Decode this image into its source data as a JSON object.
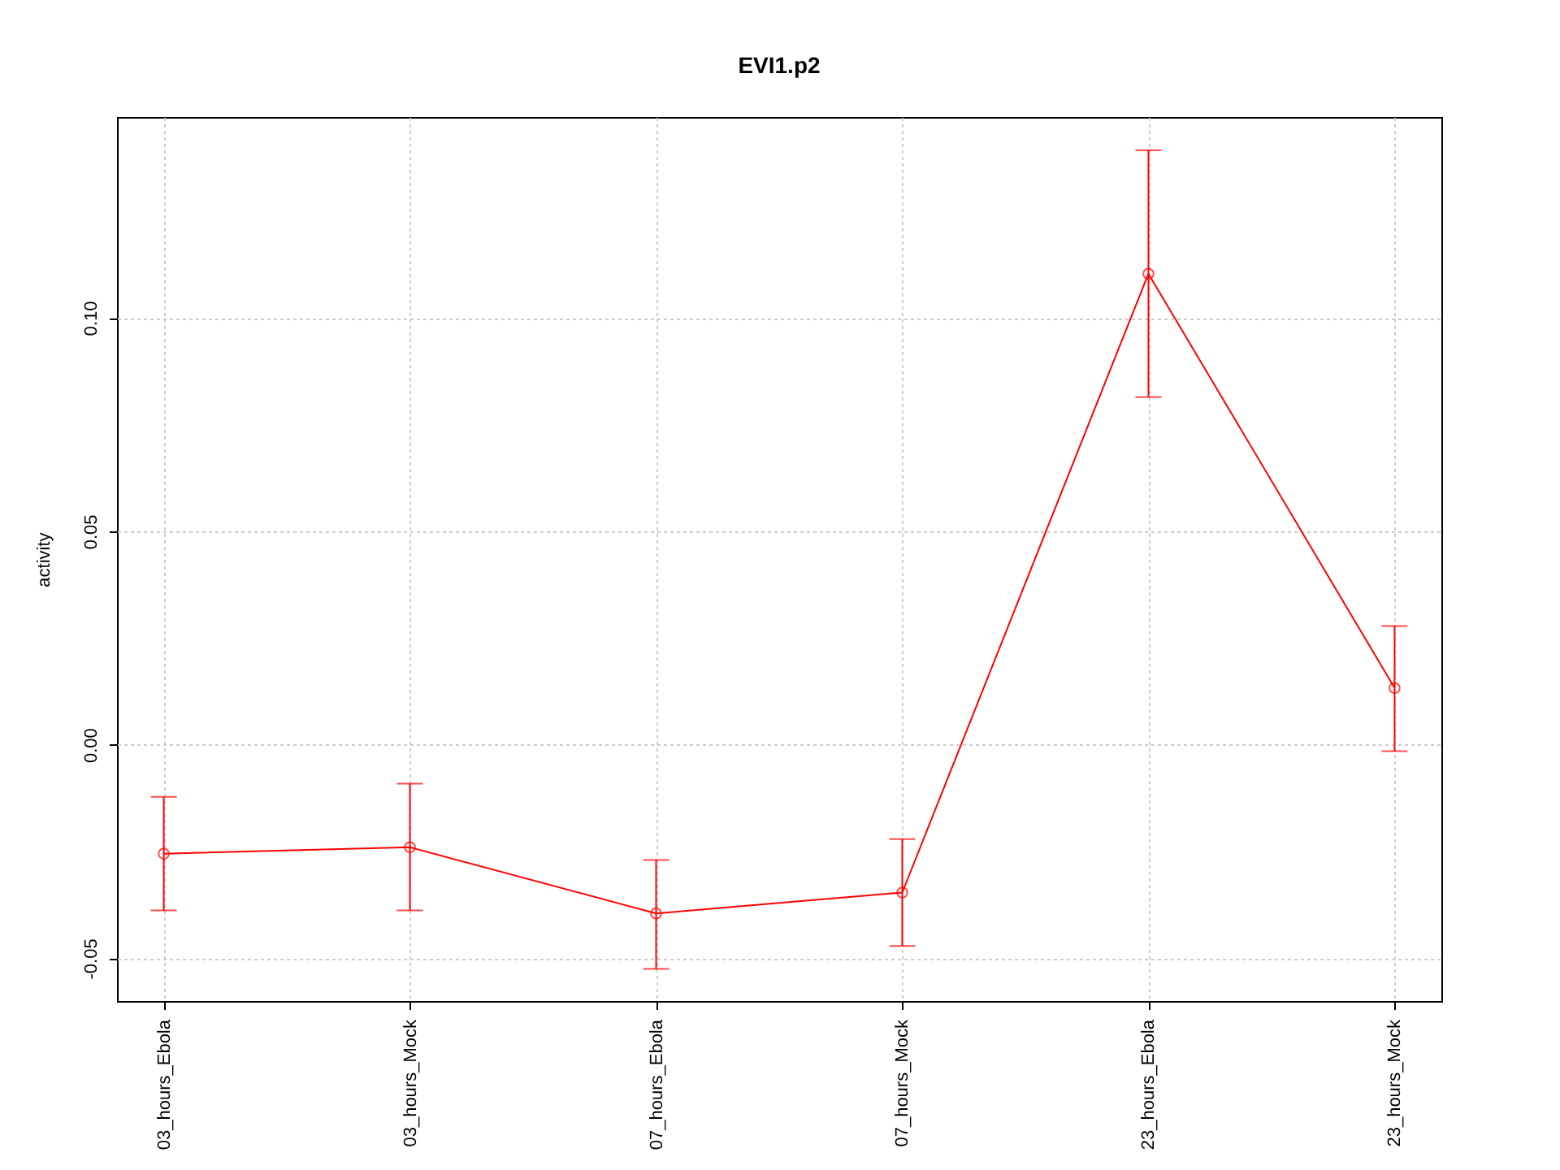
{
  "chart_data": {
    "type": "line",
    "title": "EVI1.p2",
    "ylabel": "activity",
    "categories": [
      "03_hours_Ebola",
      "03_hours_Mock",
      "07_hours_Ebola",
      "07_hours_Mock",
      "23_hours_Ebola",
      "23_hours_Mock"
    ],
    "series": [
      {
        "color": "#ff0000",
        "values": [
          -0.0255,
          -0.024,
          -0.0395,
          -0.0346,
          0.1103,
          0.0133
        ],
        "errors": [
          [
            -0.0388,
            -0.0122
          ],
          [
            -0.0388,
            -0.0091
          ],
          [
            -0.0525,
            -0.027
          ],
          [
            -0.0471,
            -0.0221
          ],
          [
            0.0814,
            0.1392
          ],
          [
            -0.0015,
            0.0278
          ]
        ]
      }
    ],
    "ylim": [
      -0.06,
      0.147
    ],
    "yticks": [
      {
        "value": -0.05,
        "label": "-0.05"
      },
      {
        "value": 0,
        "label": "0.00"
      },
      {
        "value": 0.05,
        "label": "0.05"
      },
      {
        "value": 0.1,
        "label": "0.10"
      }
    ],
    "grid": true,
    "marker": "circle",
    "line_style": "solid"
  }
}
